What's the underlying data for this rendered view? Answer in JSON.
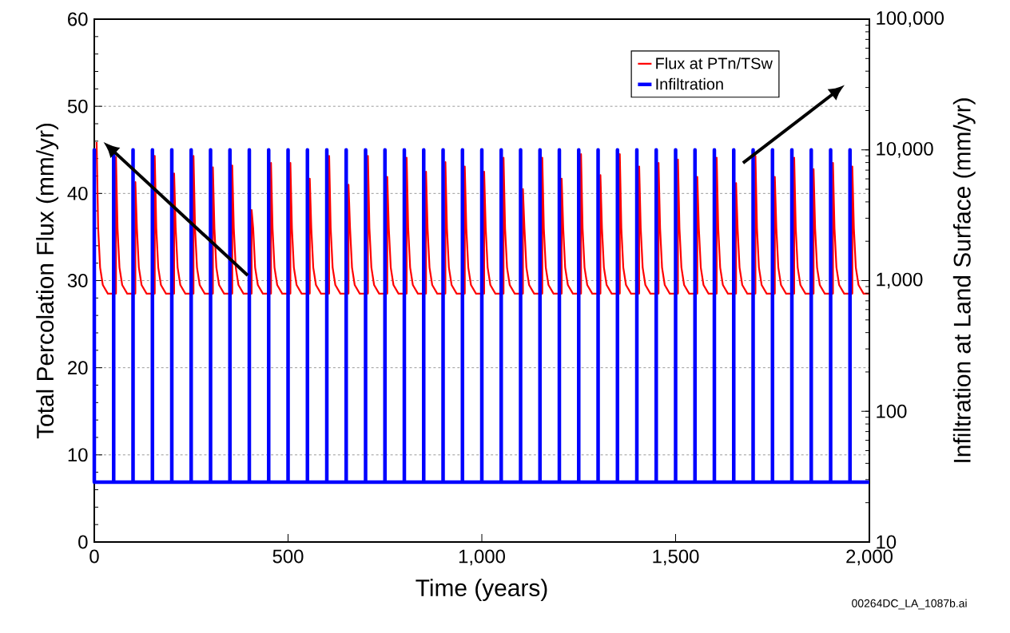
{
  "chart_data": {
    "type": "line",
    "xlabel": "Time (years)",
    "ylabel": "Total Percolation Flux (mm/yr)",
    "y2label": "Infiltration at Land Surface (mm/yr)",
    "annotations": [
      "00264DC_LA_1087b.ai"
    ],
    "xlim": [
      0,
      2000
    ],
    "xticks": [
      0,
      500,
      {
        "value": 1000,
        "label": "1,000"
      },
      {
        "value": 1500,
        "label": "1,500"
      },
      {
        "value": 2000,
        "label": "2,000"
      }
    ],
    "ylim": [
      0,
      60
    ],
    "yticks": [
      0,
      10,
      20,
      30,
      40,
      50,
      60
    ],
    "y2lim": [
      10,
      100000
    ],
    "y2ticks": [
      10,
      100,
      {
        "value": 1000,
        "label": "1,000"
      },
      {
        "value": 10000,
        "label": "10,000"
      },
      {
        "value": 100000,
        "label": "100,000"
      }
    ],
    "log": "y2",
    "grid": "y",
    "legend": "top right",
    "series": [
      {
        "name": "Flux at PTn/TSw",
        "color": "#ff0000",
        "x": [
          6,
          10,
          15,
          22,
          35,
          56,
          56,
          60,
          65,
          72,
          85,
          106,
          106,
          110,
          115,
          122,
          135,
          156,
          156,
          160,
          165,
          172,
          185,
          206,
          206,
          210,
          215,
          222,
          235,
          256,
          256,
          260,
          265,
          272,
          285,
          306,
          306,
          310,
          315,
          322,
          335,
          356,
          356,
          360,
          365,
          372,
          385,
          406,
          406,
          410,
          415,
          422,
          435,
          456,
          456,
          460,
          465,
          472,
          485,
          506,
          506,
          510,
          515,
          522,
          535,
          556,
          556,
          560,
          565,
          572,
          585,
          606,
          606,
          610,
          615,
          622,
          635,
          656,
          656,
          660,
          665,
          672,
          685,
          706,
          706,
          710,
          715,
          722,
          735,
          756,
          756,
          760,
          765,
          772,
          785,
          806,
          806,
          810,
          815,
          822,
          835,
          856,
          856,
          860,
          865,
          872,
          885,
          906,
          906,
          910,
          915,
          922,
          935,
          956,
          956,
          960,
          965,
          972,
          985,
          1006,
          1006,
          1010,
          1015,
          1022,
          1035,
          1056,
          1056,
          1060,
          1065,
          1072,
          1085,
          1106,
          1106,
          1110,
          1115,
          1122,
          1135,
          1156,
          1156,
          1160,
          1165,
          1172,
          1185,
          1206,
          1206,
          1210,
          1215,
          1222,
          1235,
          1256,
          1256,
          1260,
          1265,
          1272,
          1285,
          1306,
          1306,
          1310,
          1315,
          1322,
          1335,
          1356,
          1356,
          1360,
          1365,
          1372,
          1385,
          1406,
          1406,
          1410,
          1415,
          1422,
          1435,
          1456,
          1456,
          1460,
          1465,
          1472,
          1485,
          1506,
          1506,
          1510,
          1515,
          1522,
          1535,
          1556,
          1556,
          1560,
          1565,
          1572,
          1585,
          1606,
          1606,
          1610,
          1615,
          1622,
          1635,
          1656,
          1656,
          1660,
          1665,
          1672,
          1685,
          1706,
          1706,
          1710,
          1715,
          1722,
          1735,
          1756,
          1756,
          1760,
          1765,
          1772,
          1785,
          1806,
          1806,
          1810,
          1815,
          1822,
          1835,
          1856,
          1856,
          1860,
          1865,
          1872,
          1885,
          1906,
          1906,
          1910,
          1915,
          1922,
          1935,
          1956,
          1956,
          1960,
          1965,
          1972,
          1985,
          2000
        ],
        "values": [
          45.9,
          36,
          31.5,
          29.5,
          28.5,
          28.5,
          44.2,
          36,
          31.5,
          29.5,
          28.5,
          28.5,
          41.3,
          36,
          31.5,
          29.5,
          28.5,
          28.5,
          44.3,
          36,
          31.5,
          29.5,
          28.5,
          28.5,
          42.3,
          36,
          31.5,
          29.5,
          28.5,
          28.5,
          44.3,
          36,
          31.5,
          29.5,
          28.5,
          28.5,
          43.0,
          36,
          31.5,
          29.5,
          28.5,
          28.5,
          43.2,
          36,
          31.5,
          29.5,
          28.5,
          28.5,
          38.1,
          36,
          31.5,
          29.5,
          28.5,
          28.5,
          43.5,
          36,
          31.5,
          29.5,
          28.5,
          28.5,
          43.5,
          36,
          31.5,
          29.5,
          28.5,
          28.5,
          41.7,
          36,
          31.5,
          29.5,
          28.5,
          28.5,
          44.3,
          36,
          31.5,
          29.5,
          28.5,
          28.5,
          41.0,
          36,
          31.5,
          29.5,
          28.5,
          28.5,
          44.3,
          36,
          31.5,
          29.5,
          28.5,
          28.5,
          41.9,
          36,
          31.5,
          29.5,
          28.5,
          28.5,
          44.1,
          36,
          31.5,
          29.5,
          28.5,
          28.5,
          42.5,
          36,
          31.5,
          29.5,
          28.5,
          28.5,
          43.6,
          36,
          31.5,
          29.5,
          28.5,
          28.5,
          43.1,
          36,
          31.5,
          29.5,
          28.5,
          28.5,
          42.5,
          36,
          31.5,
          29.5,
          28.5,
          28.5,
          44.1,
          36,
          31.5,
          29.5,
          28.5,
          28.5,
          40.5,
          36,
          31.5,
          29.5,
          28.5,
          28.5,
          44.1,
          36,
          31.5,
          29.5,
          28.5,
          28.5,
          41.7,
          36,
          31.5,
          29.5,
          28.5,
          28.5,
          44.5,
          36,
          31.5,
          29.5,
          28.5,
          28.5,
          42.1,
          36,
          31.5,
          29.5,
          28.5,
          28.5,
          44.5,
          36,
          31.5,
          29.5,
          28.5,
          28.5,
          43.1,
          36,
          31.5,
          29.5,
          28.5,
          28.5,
          43.5,
          36,
          31.5,
          29.5,
          28.5,
          28.5,
          43.9,
          36,
          31.5,
          29.5,
          28.5,
          28.5,
          41.9,
          36,
          31.5,
          29.5,
          28.5,
          28.5,
          44.1,
          36,
          31.5,
          29.5,
          28.5,
          28.5,
          41.2,
          36,
          31.5,
          29.5,
          28.5,
          28.5,
          44.3,
          36,
          31.5,
          29.5,
          28.5,
          28.5,
          41.9,
          36,
          31.5,
          29.5,
          28.5,
          28.5,
          44.1,
          36,
          31.5,
          29.5,
          28.5,
          28.5,
          42.8,
          36,
          31.5,
          29.5,
          28.5,
          28.5,
          43.5,
          36,
          31.5,
          29.5,
          28.5,
          28.5,
          43.1,
          36,
          31.5,
          29.5,
          28.5,
          28.5
        ]
      },
      {
        "name": "Infiltration",
        "color": "#0000ff",
        "axis": "y2",
        "x": [
          0,
          0,
          0,
          50,
          50,
          50,
          100,
          100,
          100,
          150,
          150,
          150,
          200,
          200,
          200,
          250,
          250,
          250,
          300,
          300,
          300,
          350,
          350,
          350,
          400,
          400,
          400,
          450,
          450,
          450,
          500,
          500,
          500,
          550,
          550,
          550,
          600,
          600,
          600,
          650,
          650,
          650,
          700,
          700,
          700,
          750,
          750,
          750,
          800,
          800,
          800,
          850,
          850,
          850,
          900,
          900,
          900,
          950,
          950,
          950,
          1000,
          1000,
          1000,
          1050,
          1050,
          1050,
          1100,
          1100,
          1100,
          1150,
          1150,
          1150,
          1200,
          1200,
          1200,
          1250,
          1250,
          1250,
          1300,
          1300,
          1300,
          1350,
          1350,
          1350,
          1400,
          1400,
          1400,
          1450,
          1450,
          1450,
          1500,
          1500,
          1500,
          1550,
          1550,
          1550,
          1600,
          1600,
          1600,
          1650,
          1650,
          1650,
          1700,
          1700,
          1700,
          1750,
          1750,
          1750,
          1800,
          1800,
          1800,
          1850,
          1850,
          1850,
          1900,
          1900,
          1900,
          1950,
          1950,
          1950,
          2000
        ],
        "values": [
          28.7,
          10000,
          28.7,
          28.7,
          10000,
          28.7,
          28.7,
          10000,
          28.7,
          28.7,
          10000,
          28.7,
          28.7,
          10000,
          28.7,
          28.7,
          10000,
          28.7,
          28.7,
          10000,
          28.7,
          28.7,
          10000,
          28.7,
          28.7,
          10000,
          28.7,
          28.7,
          10000,
          28.7,
          28.7,
          10000,
          28.7,
          28.7,
          10000,
          28.7,
          28.7,
          10000,
          28.7,
          28.7,
          10000,
          28.7,
          28.7,
          10000,
          28.7,
          28.7,
          10000,
          28.7,
          28.7,
          10000,
          28.7,
          28.7,
          10000,
          28.7,
          28.7,
          10000,
          28.7,
          28.7,
          10000,
          28.7,
          28.7,
          10000,
          28.7,
          28.7,
          10000,
          28.7,
          28.7,
          10000,
          28.7,
          28.7,
          10000,
          28.7,
          28.7,
          10000,
          28.7,
          28.7,
          10000,
          28.7,
          28.7,
          10000,
          28.7,
          28.7,
          10000,
          28.7,
          28.7,
          10000,
          28.7,
          28.7,
          10000,
          28.7,
          28.7,
          10000,
          28.7,
          28.7,
          10000,
          28.7,
          28.7,
          10000,
          28.7,
          28.7,
          10000,
          28.7,
          28.7,
          10000,
          28.7,
          28.7,
          10000,
          28.7,
          28.7,
          10000,
          28.7,
          28.7,
          10000,
          28.7,
          28.7,
          10000,
          28.7,
          28.7,
          10000,
          28.7,
          28.7
        ]
      }
    ]
  }
}
